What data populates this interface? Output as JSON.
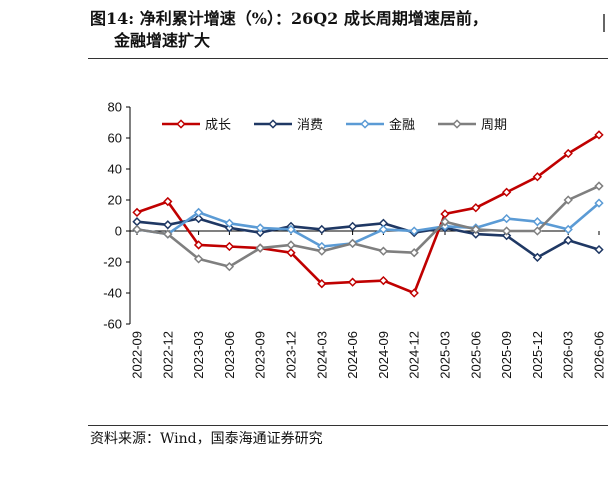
{
  "figure": {
    "title_line1": "图14:  净利累计增速（%）：26Q2 成长周期增速居前，",
    "title_line2": "金融增速扩大",
    "source": "资料来源：Wind，国泰海通证券研究"
  },
  "chart_data": {
    "type": "line",
    "title": "",
    "xlabel": "",
    "ylabel": "",
    "ylim": [
      -60,
      80
    ],
    "yticks": [
      -60,
      -40,
      -20,
      0,
      20,
      40,
      60,
      80
    ],
    "grid": false,
    "legend_position": "top",
    "categories": [
      "2022-09",
      "2022-12",
      "2023-03",
      "2023-06",
      "2023-09",
      "2023-12",
      "2024-03",
      "2024-06",
      "2024-09",
      "2024-12",
      "2025-03",
      "2025-06",
      "2025-09",
      "2025-12",
      "2026-03",
      "2026-06"
    ],
    "series": [
      {
        "name": "成长",
        "color": "#c00000",
        "values": [
          12,
          19,
          -9,
          -10,
          -11,
          -14,
          -34,
          -33,
          -32,
          -40,
          11,
          15,
          25,
          35,
          50,
          62
        ]
      },
      {
        "name": "消费",
        "color": "#1f3864",
        "values": [
          6,
          4,
          8,
          2,
          -1,
          3,
          1,
          3,
          5,
          -1,
          2,
          -2,
          -3,
          -17,
          -6,
          -12
        ]
      },
      {
        "name": "金融",
        "color": "#5b9bd5",
        "values": [
          1,
          -2,
          12,
          5,
          2,
          1,
          -10,
          -8,
          1,
          0,
          3,
          2,
          8,
          6,
          1,
          18
        ]
      },
      {
        "name": "周期",
        "color": "#7f7f7f",
        "values": [
          1,
          -2,
          -18,
          -23,
          -11,
          -9,
          -13,
          -8,
          -13,
          -14,
          6,
          1,
          0,
          0,
          20,
          29
        ]
      }
    ]
  }
}
